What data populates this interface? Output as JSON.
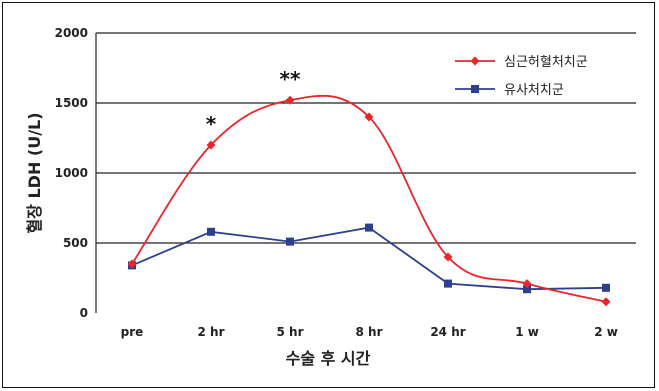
{
  "chart_data": {
    "type": "line",
    "title": "",
    "xlabel": "수술 후 시간",
    "ylabel": "혈장 LDH (U/L)",
    "categories": [
      "pre",
      "2 hr",
      "5 hr",
      "8 hr",
      "24 hr",
      "1 w",
      "2 w"
    ],
    "ylim": [
      0,
      2000
    ],
    "yticks": [
      0,
      500,
      1000,
      1500,
      2000
    ],
    "grid": "horizontal",
    "legend": "top-right",
    "series": [
      {
        "name": "심근허혈처치군",
        "color": "#e8262b",
        "marker": "diamond",
        "values": [
          350,
          1200,
          1520,
          1400,
          400,
          210,
          80
        ]
      },
      {
        "name": "유사처치군",
        "color": "#2d3f8f",
        "marker": "square",
        "values": [
          340,
          580,
          510,
          610,
          210,
          170,
          180
        ]
      }
    ],
    "annotations": [
      {
        "text": "*",
        "category": "2 hr",
        "y": 1200
      },
      {
        "text": "**",
        "category": "5 hr",
        "y": 1520
      }
    ]
  }
}
